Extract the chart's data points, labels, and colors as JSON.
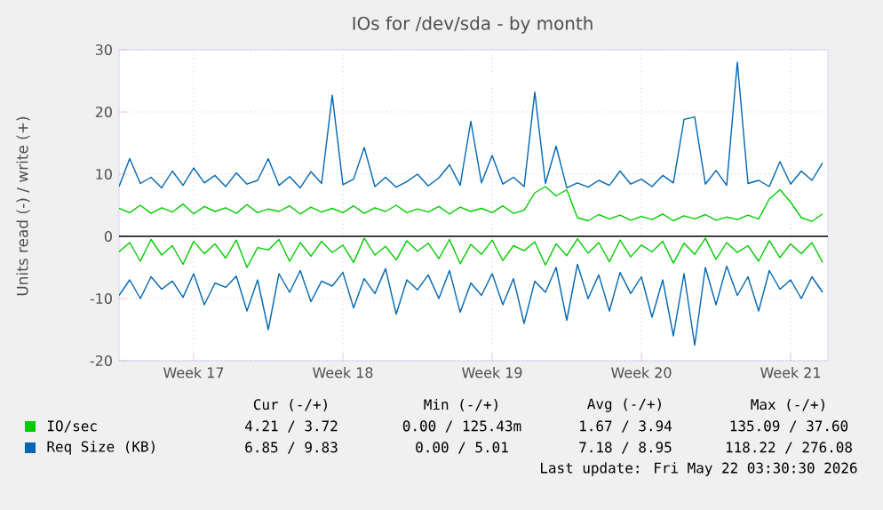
{
  "chart_data": {
    "type": "line",
    "title": "IOs for /dev/sda - by month",
    "ylabel": "Units read (-) / write (+)",
    "categories": [
      null,
      null,
      null,
      null,
      null,
      null,
      null,
      "Week 17",
      null,
      null,
      null,
      null,
      null,
      null,
      null,
      null,
      null,
      null,
      null,
      null,
      null,
      "Week 18",
      null,
      null,
      null,
      null,
      null,
      null,
      null,
      null,
      null,
      null,
      null,
      null,
      null,
      "Week 19",
      null,
      null,
      null,
      null,
      null,
      null,
      null,
      null,
      null,
      null,
      null,
      null,
      null,
      "Week 20",
      null,
      null,
      null,
      null,
      null,
      null,
      null,
      null,
      null,
      null,
      null,
      null,
      null,
      "Week 21",
      null,
      null,
      null
    ],
    "ylim": [
      -20,
      30
    ],
    "yticks": [
      -20,
      -10,
      0,
      10,
      20,
      30
    ],
    "grid": true,
    "legend": "bottom",
    "ref_lines": [
      {
        "axis": "y",
        "value": 0,
        "color": "#000000"
      }
    ],
    "series": [
      {
        "name": "IO/sec",
        "color": "#00cc00",
        "values": [
          4.5,
          3.8,
          5.0,
          3.7,
          4.6,
          3.9,
          5.2,
          3.6,
          4.8,
          4.0,
          4.6,
          3.7,
          5.1,
          3.8,
          4.4,
          4.0,
          4.9,
          3.6,
          4.7,
          3.9,
          4.5,
          3.8,
          4.9,
          3.7,
          4.6,
          4.0,
          5.0,
          3.8,
          4.4,
          3.9,
          4.8,
          3.6,
          4.7,
          4.0,
          4.5,
          3.8,
          4.9,
          3.7,
          4.2,
          7.0,
          8.0,
          6.5,
          7.5,
          3.0,
          2.5,
          3.5,
          2.8,
          3.4,
          2.6,
          3.2,
          2.7,
          3.6,
          2.5,
          3.3,
          2.8,
          3.5,
          2.6,
          3.1,
          2.7,
          3.4,
          2.8,
          6.0,
          7.5,
          5.5,
          3.0,
          2.4,
          3.6
        ]
      },
      {
        "color": "#00cc00",
        "values": [
          -2.5,
          -1.0,
          -4.0,
          -0.5,
          -3.0,
          -1.5,
          -4.5,
          -0.8,
          -2.8,
          -1.2,
          -3.5,
          -0.6,
          -5.0,
          -1.8,
          -2.2,
          -0.5,
          -4.0,
          -1.0,
          -3.2,
          -0.8,
          -2.6,
          -1.4,
          -4.2,
          -0.3,
          -3.0,
          -1.6,
          -3.8,
          -0.7,
          -2.4,
          -1.1,
          -3.6,
          -0.5,
          -4.4,
          -1.3,
          -2.9,
          -0.6,
          -3.9,
          -1.5,
          -2.3,
          -0.9,
          -4.6,
          -1.2,
          -3.1,
          -0.4,
          -2.7,
          -1.0,
          -4.1,
          -0.6,
          -3.3,
          -1.4,
          -2.5,
          -0.8,
          -4.3,
          -1.1,
          -2.9,
          -0.3,
          -3.7,
          -1.0,
          -2.6,
          -1.5,
          -4.0,
          -0.7,
          -3.4,
          -1.2,
          -2.8,
          -1.0,
          -4.2
        ]
      },
      {
        "name": "Req Size (KB)",
        "color": "#0066b3",
        "values": [
          8.0,
          12.5,
          8.5,
          9.5,
          7.8,
          10.5,
          8.2,
          11.0,
          8.6,
          9.8,
          8.0,
          10.2,
          8.4,
          9.0,
          12.5,
          8.2,
          9.6,
          7.8,
          10.4,
          8.5,
          22.7,
          8.3,
          9.2,
          14.3,
          8.0,
          9.5,
          7.9,
          8.8,
          10.0,
          8.1,
          9.4,
          11.5,
          8.2,
          18.5,
          8.6,
          13.0,
          8.4,
          9.5,
          8.0,
          23.2,
          8.5,
          14.5,
          7.8,
          8.6,
          7.9,
          9.0,
          8.2,
          10.5,
          8.4,
          9.2,
          8.0,
          9.8,
          8.6,
          18.8,
          19.2,
          8.4,
          10.6,
          8.2,
          28.0,
          8.5,
          9.0,
          8.0,
          12.0,
          8.4,
          10.5,
          9.0,
          11.8
        ]
      },
      {
        "color": "#0066b3",
        "values": [
          -9.5,
          -7.0,
          -10.0,
          -6.5,
          -8.5,
          -7.2,
          -9.8,
          -6.0,
          -11.0,
          -7.5,
          -8.2,
          -6.4,
          -12.0,
          -7.0,
          -15.0,
          -6.0,
          -9.0,
          -5.5,
          -10.5,
          -7.2,
          -8.0,
          -5.8,
          -11.5,
          -6.8,
          -9.2,
          -5.2,
          -12.5,
          -7.0,
          -8.6,
          -6.2,
          -10.0,
          -5.5,
          -12.2,
          -7.5,
          -9.5,
          -6.0,
          -11.0,
          -6.8,
          -14.0,
          -7.2,
          -9.0,
          -5.0,
          -13.5,
          -4.5,
          -10.0,
          -6.2,
          -12.0,
          -5.8,
          -9.2,
          -6.5,
          -13.0,
          -7.0,
          -16.0,
          -6.0,
          -17.5,
          -5.0,
          -11.0,
          -4.8,
          -9.5,
          -6.5,
          -12.0,
          -5.5,
          -8.5,
          -7.0,
          -10.0,
          -6.5,
          -9.0
        ]
      }
    ],
    "annotations": [
      "Cur (-/+)",
      "Min (-/+)",
      "Avg (-/+)",
      "Max (-/+)",
      "4.21 / 3.72",
      "0.00 / 125.43m",
      "1.67 / 3.94",
      "135.09 / 37.60",
      "6.85 / 9.83",
      "0.00 / 5.01",
      "7.18 / 8.95",
      "118.22 / 276.08",
      "Last update: Fri May 22 03:30:30 2026"
    ]
  }
}
